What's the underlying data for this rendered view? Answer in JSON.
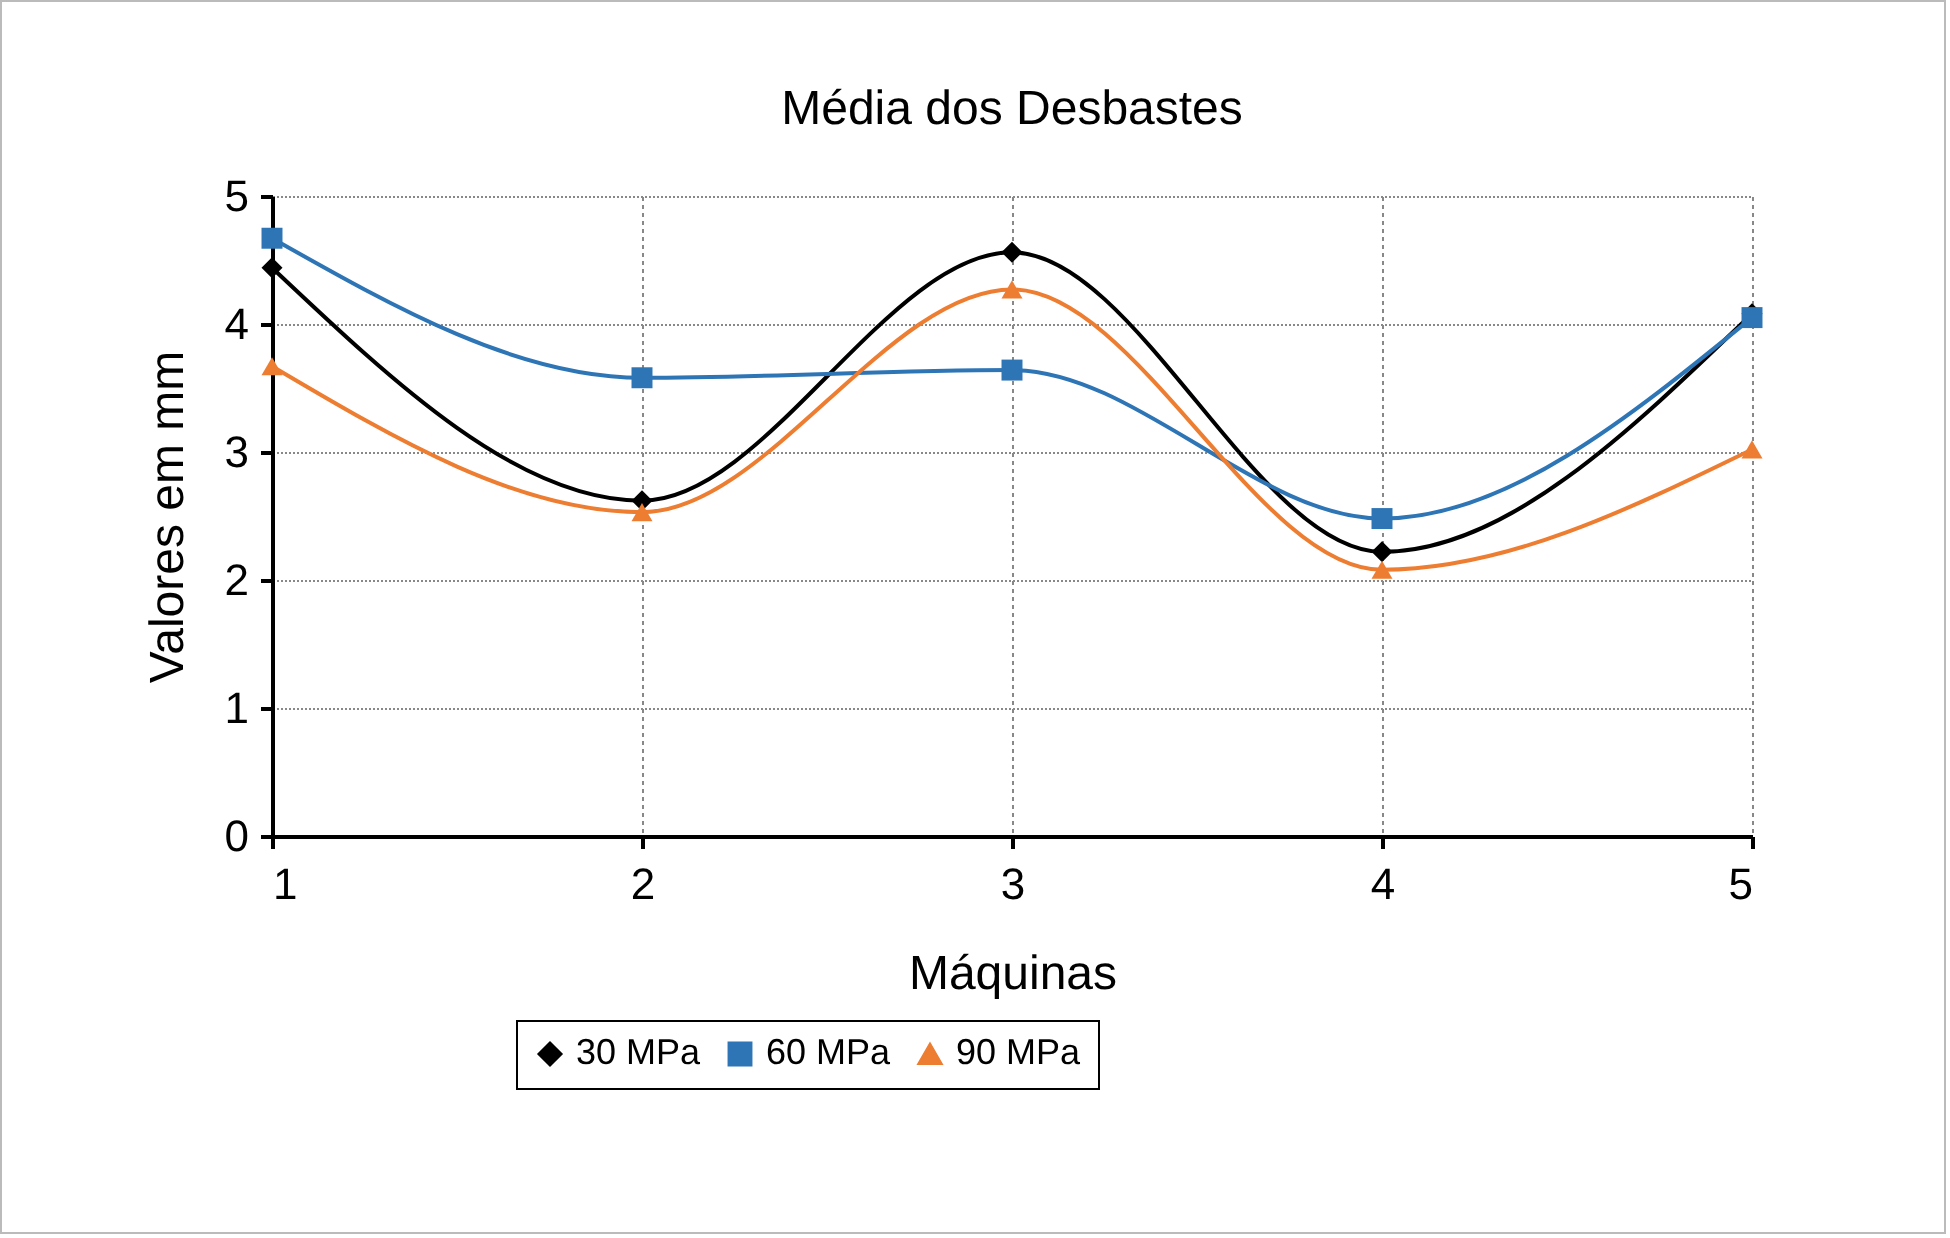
{
  "chart_data": {
    "type": "line",
    "title": "Média dos Desbastes",
    "xlabel": "Máquinas",
    "ylabel": "Valores em mm",
    "x": [
      1,
      2,
      3,
      4,
      5
    ],
    "series": [
      {
        "name": "30 MPa",
        "color": "#000000",
        "marker": "diamond",
        "values": [
          4.44,
          2.62,
          4.56,
          2.22,
          4.08
        ]
      },
      {
        "name": "60 MPa",
        "color": "#2e75b6",
        "marker": "square",
        "values": [
          4.67,
          3.58,
          3.64,
          2.48,
          4.05
        ]
      },
      {
        "name": "90 MPa",
        "color": "#ed7d31",
        "marker": "triangle",
        "values": [
          3.67,
          2.53,
          4.27,
          2.08,
          3.02
        ]
      }
    ],
    "xlim": [
      1,
      5
    ],
    "xticks": [
      1,
      2,
      3,
      4,
      5
    ],
    "ylim": [
      0,
      5
    ],
    "yticks": [
      0,
      1,
      2,
      3,
      4,
      5
    ],
    "grid": true,
    "legend": "bottom",
    "line_style": "solid"
  }
}
